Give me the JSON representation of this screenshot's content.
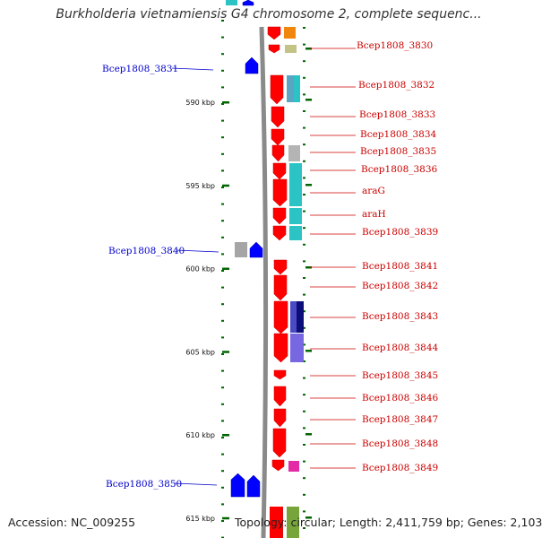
{
  "title": "Burkholderia vietnamiensis G4 chromosome 2, complete sequenc...",
  "accession_text": "Accession: NC_009255",
  "topology_text": "Topology: circular; Length: 2,411,759 bp; Genes: 2,103",
  "scale": {
    "ticks": [
      {
        "kbp": 590,
        "label": "590 kbp"
      },
      {
        "kbp": 595,
        "label": "595 kbp"
      },
      {
        "kbp": 600,
        "label": "600 kbp"
      },
      {
        "kbp": 605,
        "label": "605 kbp"
      },
      {
        "kbp": 610,
        "label": "610 kbp"
      },
      {
        "kbp": 615,
        "label": "615 kbp"
      }
    ]
  },
  "colors": {
    "forward_gene": "#ff0000",
    "reverse_gene": "#0000ff",
    "backbone": "#888888",
    "tick": "#006600",
    "leader_forward": "#cc0000",
    "leader_reverse": "#0000cc"
  },
  "genes_forward": [
    {
      "name": "Bcep1808_3830"
    },
    {
      "name": "Bcep1808_3832"
    },
    {
      "name": "Bcep1808_3833"
    },
    {
      "name": "Bcep1808_3834"
    },
    {
      "name": "Bcep1808_3835"
    },
    {
      "name": "Bcep1808_3836"
    },
    {
      "name": "araG"
    },
    {
      "name": "araH"
    },
    {
      "name": "Bcep1808_3839"
    },
    {
      "name": "Bcep1808_3841"
    },
    {
      "name": "Bcep1808_3842"
    },
    {
      "name": "Bcep1808_3843"
    },
    {
      "name": "Bcep1808_3844"
    },
    {
      "name": "Bcep1808_3845"
    },
    {
      "name": "Bcep1808_3846"
    },
    {
      "name": "Bcep1808_3847"
    },
    {
      "name": "Bcep1808_3848"
    },
    {
      "name": "Bcep1808_3849"
    }
  ],
  "genes_reverse": [
    {
      "name": "Bcep1808_3831"
    },
    {
      "name": "Bcep1808_3840"
    },
    {
      "name": "Bcep1808_3850"
    }
  ]
}
